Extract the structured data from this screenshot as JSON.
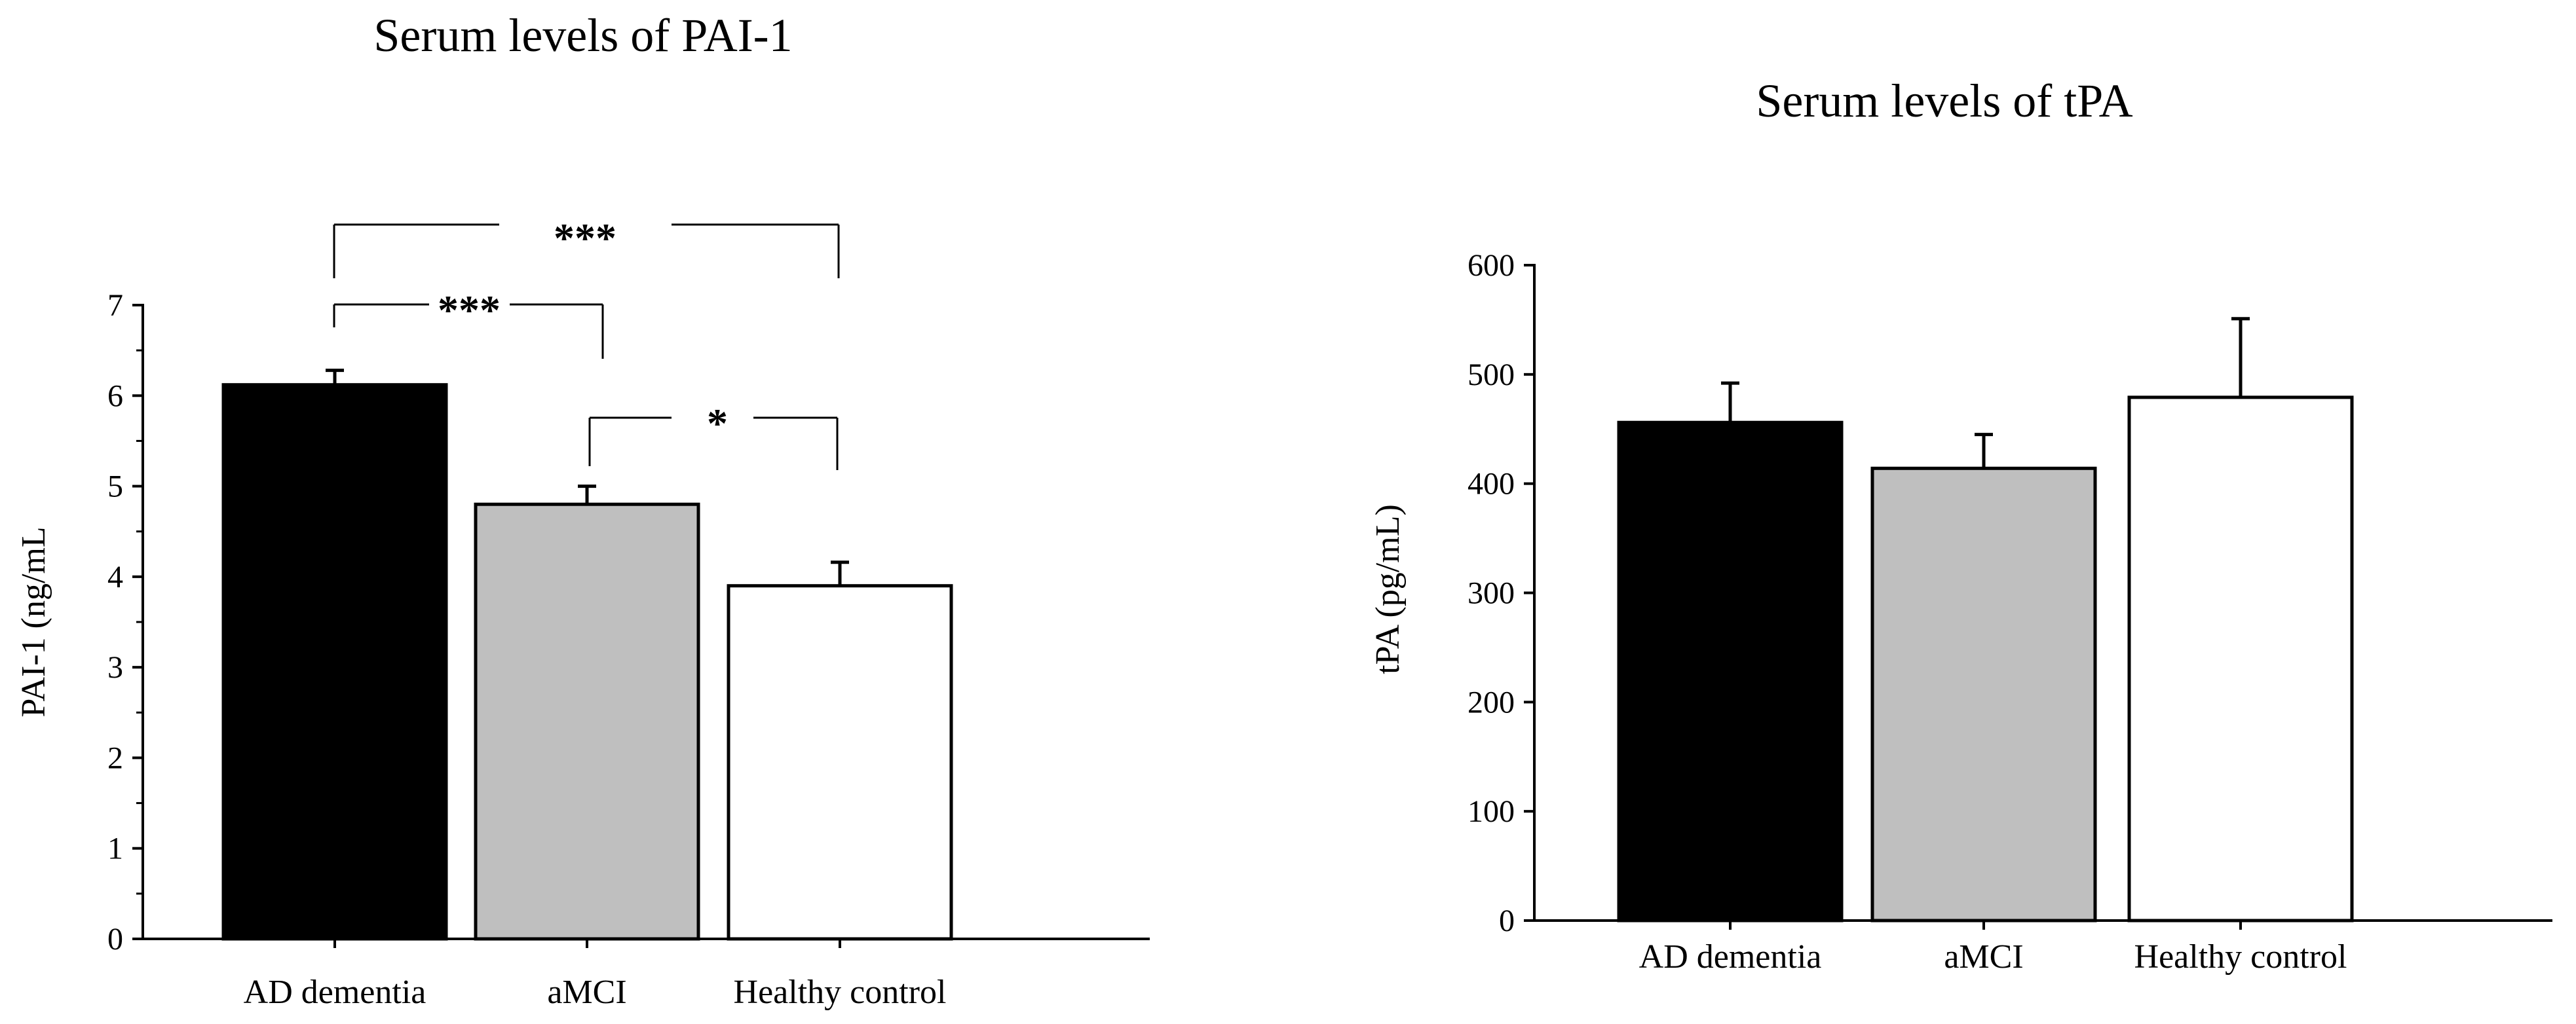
{
  "chart_data": [
    {
      "type": "bar",
      "title": "Serum levels of PAI-1",
      "ylabel": "PAI-1  (ng/mL",
      "xlabel": "",
      "categories": [
        "AD dementia",
        "aMCI",
        "Healthy control"
      ],
      "values": [
        6.12,
        4.8,
        3.9
      ],
      "errors": [
        0.16,
        0.2,
        0.26
      ],
      "bar_colors": [
        "#000000",
        "#bfbfbf",
        "#ffffff"
      ],
      "ylim": [
        0,
        7
      ],
      "yticks": [
        "0",
        "1",
        "2",
        "3",
        "4",
        "5",
        "6",
        "7"
      ],
      "grid": false,
      "significance": [
        {
          "from": 0,
          "to": 2,
          "label": "***"
        },
        {
          "from": 0,
          "to": 1,
          "label": "***"
        },
        {
          "from": 1,
          "to": 2,
          "label": "*"
        }
      ]
    },
    {
      "type": "bar",
      "title": "Serum levels of tPA",
      "ylabel": "tPA (pg/mL)",
      "xlabel": "",
      "categories": [
        "AD dementia",
        "aMCI",
        "Healthy control"
      ],
      "values": [
        456,
        414,
        479
      ],
      "errors": [
        36,
        31,
        72
      ],
      "bar_colors": [
        "#000000",
        "#bfbfbf",
        "#ffffff"
      ],
      "ylim": [
        0,
        600
      ],
      "yticks": [
        "0",
        "100",
        "200",
        "300",
        "400",
        "500",
        "600"
      ],
      "grid": false
    }
  ]
}
